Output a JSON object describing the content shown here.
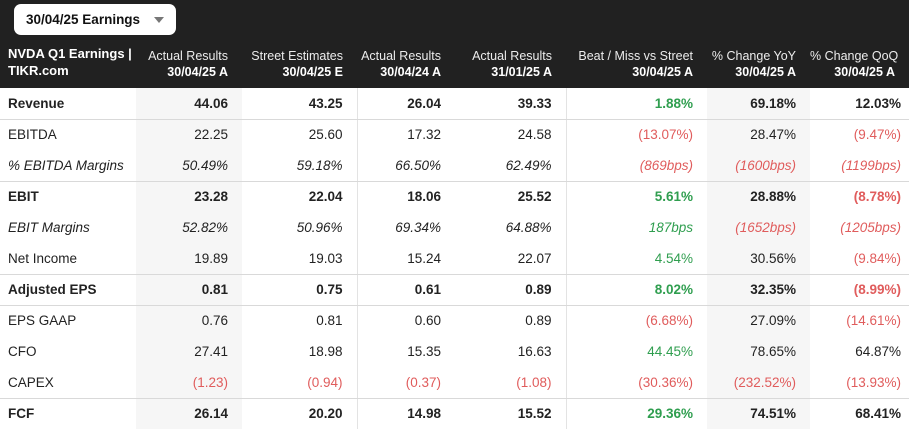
{
  "controls": {
    "period_dropdown": {
      "label": "30/04/25 Earnings"
    }
  },
  "colors": {
    "green": "#2f9e4f",
    "red": "#e05c5c",
    "header_bg": "#212121",
    "column_highlight": "#f6f6f6"
  },
  "table": {
    "title_line1": "NVDA Q1 Earnings |",
    "title_line2": "TIKR.com",
    "columns": [
      {
        "line1": "Actual Results",
        "line2": "30/04/25 A",
        "highlight": true
      },
      {
        "line1": "Street Estimates",
        "line2": "30/04/25 E"
      },
      {
        "line1": "Actual Results",
        "line2": "30/04/24 A"
      },
      {
        "line1": "Actual Results",
        "line2": "31/01/25 A"
      },
      {
        "line1": "Beat / Miss vs Street",
        "line2": "30/04/25 A"
      },
      {
        "line1": "% Change YoY",
        "line2": "30/04/25 A",
        "highlight": true
      },
      {
        "line1": "% Change QoQ",
        "line2": "30/04/25 A"
      }
    ],
    "rows": [
      {
        "label": "Revenue",
        "style": "bold",
        "group_end": true,
        "cells": [
          {
            "v": "44.06"
          },
          {
            "v": "43.25"
          },
          {
            "v": "26.04"
          },
          {
            "v": "39.33"
          },
          {
            "v": "1.88%",
            "c": "green"
          },
          {
            "v": "69.18%"
          },
          {
            "v": "12.03%"
          }
        ]
      },
      {
        "label": "EBITDA",
        "cells": [
          {
            "v": "22.25"
          },
          {
            "v": "25.60"
          },
          {
            "v": "17.32"
          },
          {
            "v": "24.58"
          },
          {
            "v": "(13.07%)",
            "c": "red"
          },
          {
            "v": "28.47%"
          },
          {
            "v": "(9.47%)",
            "c": "red"
          }
        ]
      },
      {
        "label": "% EBITDA Margins",
        "style": "italic",
        "group_end": true,
        "cells": [
          {
            "v": "50.49%"
          },
          {
            "v": "59.18%"
          },
          {
            "v": "66.50%"
          },
          {
            "v": "62.49%"
          },
          {
            "v": "(869bps)",
            "c": "red"
          },
          {
            "v": "(1600bps)",
            "c": "red"
          },
          {
            "v": "(1199bps)",
            "c": "red"
          }
        ]
      },
      {
        "label": "EBIT",
        "style": "bold",
        "cells": [
          {
            "v": "23.28"
          },
          {
            "v": "22.04"
          },
          {
            "v": "18.06"
          },
          {
            "v": "25.52"
          },
          {
            "v": "5.61%",
            "c": "green"
          },
          {
            "v": "28.88%"
          },
          {
            "v": "(8.78%)",
            "c": "red"
          }
        ]
      },
      {
        "label": "EBIT Margins",
        "style": "italic",
        "cells": [
          {
            "v": "52.82%"
          },
          {
            "v": "50.96%"
          },
          {
            "v": "69.34%"
          },
          {
            "v": "64.88%"
          },
          {
            "v": "187bps",
            "c": "green"
          },
          {
            "v": "(1652bps)",
            "c": "red"
          },
          {
            "v": "(1205bps)",
            "c": "red"
          }
        ]
      },
      {
        "label": "Net Income",
        "group_end": true,
        "cells": [
          {
            "v": "19.89"
          },
          {
            "v": "19.03"
          },
          {
            "v": "15.24"
          },
          {
            "v": "22.07"
          },
          {
            "v": "4.54%",
            "c": "green"
          },
          {
            "v": "30.56%"
          },
          {
            "v": "(9.84%)",
            "c": "red"
          }
        ]
      },
      {
        "label": "Adjusted EPS",
        "style": "bold",
        "group_end": true,
        "cells": [
          {
            "v": "0.81"
          },
          {
            "v": "0.75"
          },
          {
            "v": "0.61"
          },
          {
            "v": "0.89"
          },
          {
            "v": "8.02%",
            "c": "green"
          },
          {
            "v": "32.35%"
          },
          {
            "v": "(8.99%)",
            "c": "red"
          }
        ]
      },
      {
        "label": "EPS GAAP",
        "cells": [
          {
            "v": "0.76"
          },
          {
            "v": "0.81"
          },
          {
            "v": "0.60"
          },
          {
            "v": "0.89"
          },
          {
            "v": "(6.68%)",
            "c": "red"
          },
          {
            "v": "27.09%"
          },
          {
            "v": "(14.61%)",
            "c": "red"
          }
        ]
      },
      {
        "label": "CFO",
        "cells": [
          {
            "v": "27.41"
          },
          {
            "v": "18.98"
          },
          {
            "v": "15.35"
          },
          {
            "v": "16.63"
          },
          {
            "v": "44.45%",
            "c": "green"
          },
          {
            "v": "78.65%"
          },
          {
            "v": "64.87%"
          }
        ]
      },
      {
        "label": "CAPEX",
        "group_end": true,
        "cells": [
          {
            "v": "(1.23)",
            "c": "red"
          },
          {
            "v": "(0.94)",
            "c": "red"
          },
          {
            "v": "(0.37)",
            "c": "red"
          },
          {
            "v": "(1.08)",
            "c": "red"
          },
          {
            "v": "(30.36%)",
            "c": "red"
          },
          {
            "v": "(232.52%)",
            "c": "red"
          },
          {
            "v": "(13.93%)",
            "c": "red"
          }
        ]
      },
      {
        "label": "FCF",
        "style": "bold",
        "group_end": true,
        "cells": [
          {
            "v": "26.14"
          },
          {
            "v": "20.20"
          },
          {
            "v": "14.98"
          },
          {
            "v": "15.52"
          },
          {
            "v": "29.36%",
            "c": "green"
          },
          {
            "v": "74.51%"
          },
          {
            "v": "68.41%"
          }
        ]
      }
    ]
  }
}
